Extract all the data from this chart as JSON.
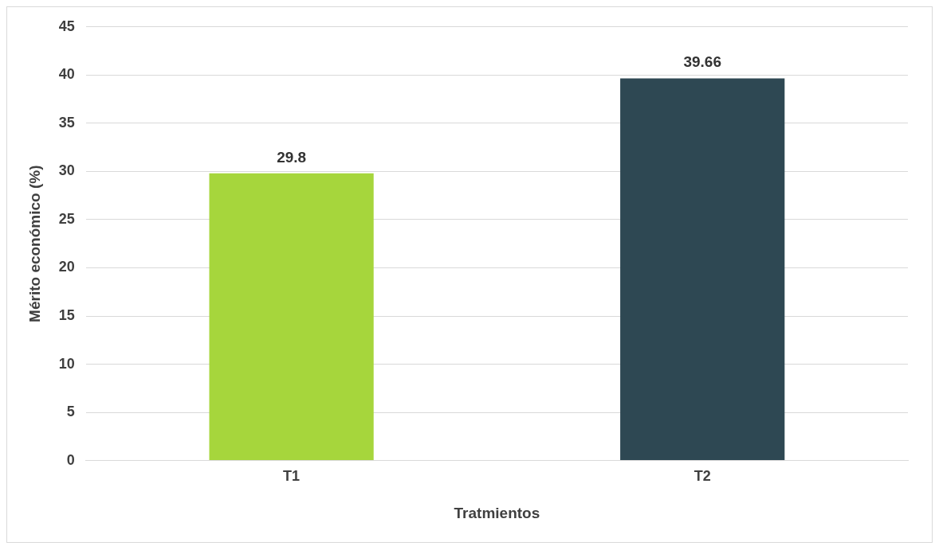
{
  "chart_data": {
    "type": "bar",
    "xlabel": "Tratmientos",
    "ylabel": "Mérito económico (%)",
    "categories": [
      "T1",
      "T2"
    ],
    "values": [
      29.8,
      39.66
    ],
    "colors": [
      "#a6d63c",
      "#2e4853"
    ],
    "ylim": [
      0,
      45
    ],
    "yticks": [
      0,
      5,
      10,
      15,
      20,
      25,
      30,
      35,
      40,
      45
    ],
    "grid": "y",
    "data_labels": true,
    "legend": false
  }
}
